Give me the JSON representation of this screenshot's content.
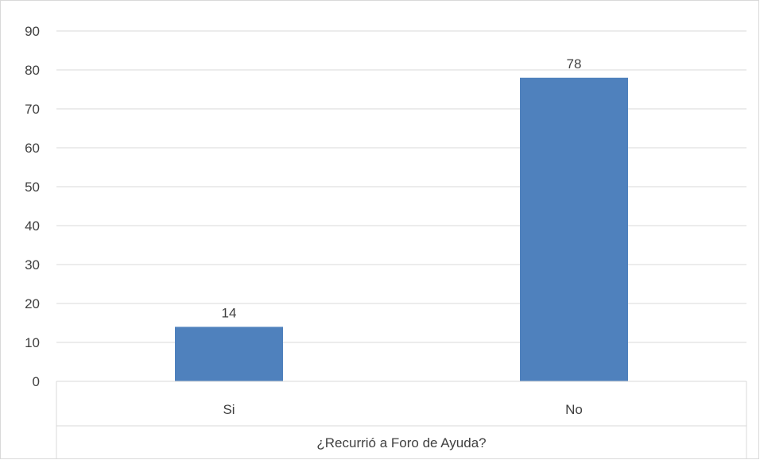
{
  "chart_data": {
    "type": "bar",
    "categories": [
      "Si",
      "No"
    ],
    "values": [
      14,
      78
    ],
    "title": "",
    "xlabel": "¿Recurrió a Foro de Ayuda?",
    "ylabel": "",
    "ylim": [
      0,
      90
    ],
    "yticks": [
      0,
      10,
      20,
      30,
      40,
      50,
      60,
      70,
      80,
      90
    ],
    "grid": true,
    "legend": "none",
    "data_labels": [
      "14",
      "78"
    ],
    "colors": {
      "bar": "#4f81bd",
      "grid": "#d9d9d9",
      "text": "#404040"
    }
  }
}
